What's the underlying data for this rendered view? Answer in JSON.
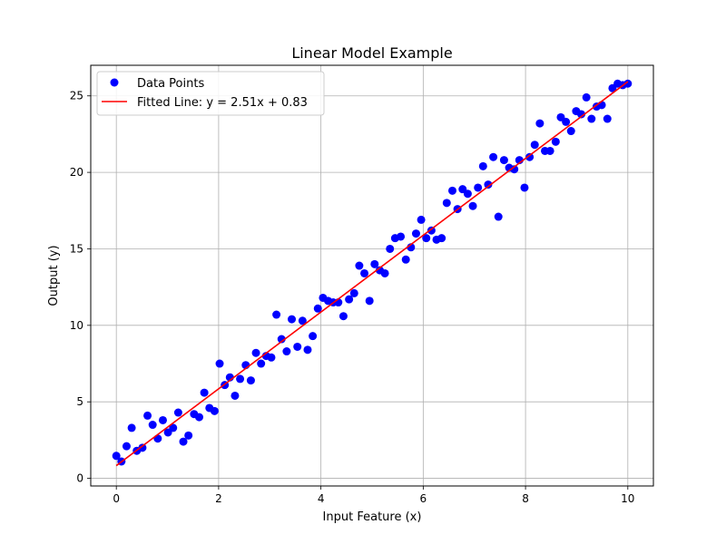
{
  "chart_data": {
    "type": "scatter",
    "title": "Linear Model Example",
    "xlabel": "Input Feature (x)",
    "ylabel": "Output (y)",
    "xlim": [
      -0.5,
      10.5
    ],
    "ylim": [
      -0.5,
      27.0
    ],
    "xticks": [
      0,
      2,
      4,
      6,
      8,
      10
    ],
    "yticks": [
      0,
      5,
      10,
      15,
      20,
      25
    ],
    "xtick_labels": [
      "0",
      "2",
      "4",
      "6",
      "8",
      "10"
    ],
    "ytick_labels": [
      "0",
      "5",
      "10",
      "15",
      "20",
      "25"
    ],
    "grid": true,
    "legend_position": "upper-left",
    "colors": {
      "points": "#0000ff",
      "line": "#ff0000",
      "grid": "#b0b0b0",
      "axes": "#000000"
    },
    "series": [
      {
        "name": "Data Points",
        "kind": "scatter",
        "color": "#0000ff",
        "points": [
          [
            0.0,
            1.47
          ],
          [
            0.1,
            1.1
          ],
          [
            0.2,
            2.1
          ],
          [
            0.3,
            3.3
          ],
          [
            0.4,
            1.8
          ],
          [
            0.51,
            2.0
          ],
          [
            0.61,
            4.1
          ],
          [
            0.71,
            3.5
          ],
          [
            0.81,
            2.6
          ],
          [
            0.91,
            3.8
          ],
          [
            1.01,
            3.0
          ],
          [
            1.11,
            3.3
          ],
          [
            1.21,
            4.3
          ],
          [
            1.31,
            2.4
          ],
          [
            1.41,
            2.8
          ],
          [
            1.52,
            4.2
          ],
          [
            1.62,
            4.0
          ],
          [
            1.72,
            5.6
          ],
          [
            1.82,
            4.6
          ],
          [
            1.92,
            4.4
          ],
          [
            2.02,
            7.5
          ],
          [
            2.12,
            6.1
          ],
          [
            2.22,
            6.6
          ],
          [
            2.32,
            5.4
          ],
          [
            2.42,
            6.5
          ],
          [
            2.53,
            7.4
          ],
          [
            2.63,
            6.4
          ],
          [
            2.73,
            8.2
          ],
          [
            2.83,
            7.5
          ],
          [
            2.93,
            8.0
          ],
          [
            3.03,
            7.9
          ],
          [
            3.13,
            10.7
          ],
          [
            3.23,
            9.1
          ],
          [
            3.33,
            8.3
          ],
          [
            3.43,
            10.4
          ],
          [
            3.54,
            8.6
          ],
          [
            3.64,
            10.3
          ],
          [
            3.74,
            8.4
          ],
          [
            3.84,
            9.3
          ],
          [
            3.94,
            11.1
          ],
          [
            4.04,
            11.8
          ],
          [
            4.14,
            11.6
          ],
          [
            4.24,
            11.5
          ],
          [
            4.34,
            11.5
          ],
          [
            4.44,
            10.6
          ],
          [
            4.55,
            11.7
          ],
          [
            4.65,
            12.1
          ],
          [
            4.75,
            13.9
          ],
          [
            4.85,
            13.4
          ],
          [
            4.95,
            11.6
          ],
          [
            5.05,
            14.0
          ],
          [
            5.15,
            13.6
          ],
          [
            5.25,
            13.4
          ],
          [
            5.35,
            15.0
          ],
          [
            5.45,
            15.7
          ],
          [
            5.56,
            15.8
          ],
          [
            5.66,
            14.3
          ],
          [
            5.76,
            15.1
          ],
          [
            5.86,
            16.0
          ],
          [
            5.96,
            16.9
          ],
          [
            6.06,
            15.7
          ],
          [
            6.16,
            16.2
          ],
          [
            6.26,
            15.6
          ],
          [
            6.36,
            15.7
          ],
          [
            6.46,
            18.0
          ],
          [
            6.57,
            18.8
          ],
          [
            6.67,
            17.6
          ],
          [
            6.77,
            18.9
          ],
          [
            6.87,
            18.6
          ],
          [
            6.97,
            17.8
          ],
          [
            7.07,
            19.0
          ],
          [
            7.17,
            20.4
          ],
          [
            7.27,
            19.2
          ],
          [
            7.37,
            21.0
          ],
          [
            7.47,
            17.1
          ],
          [
            7.58,
            20.8
          ],
          [
            7.68,
            20.3
          ],
          [
            7.78,
            20.2
          ],
          [
            7.88,
            20.8
          ],
          [
            7.98,
            19.0
          ],
          [
            8.08,
            21.0
          ],
          [
            8.18,
            21.8
          ],
          [
            8.28,
            23.2
          ],
          [
            8.38,
            21.4
          ],
          [
            8.48,
            21.4
          ],
          [
            8.59,
            22.0
          ],
          [
            8.69,
            23.6
          ],
          [
            8.79,
            23.3
          ],
          [
            8.89,
            22.7
          ],
          [
            8.99,
            24.0
          ],
          [
            9.09,
            23.8
          ],
          [
            9.19,
            24.9
          ],
          [
            9.29,
            23.5
          ],
          [
            9.39,
            24.3
          ],
          [
            9.49,
            24.4
          ],
          [
            9.6,
            23.5
          ],
          [
            9.7,
            25.5
          ],
          [
            9.8,
            25.8
          ],
          [
            9.9,
            25.7
          ],
          [
            10.0,
            25.8
          ]
        ]
      },
      {
        "name": "Fitted Line: y = 2.51x + 0.83",
        "kind": "line",
        "color": "#ff0000",
        "slope": 2.51,
        "intercept": 0.83,
        "x_range": [
          0,
          10
        ]
      }
    ]
  }
}
